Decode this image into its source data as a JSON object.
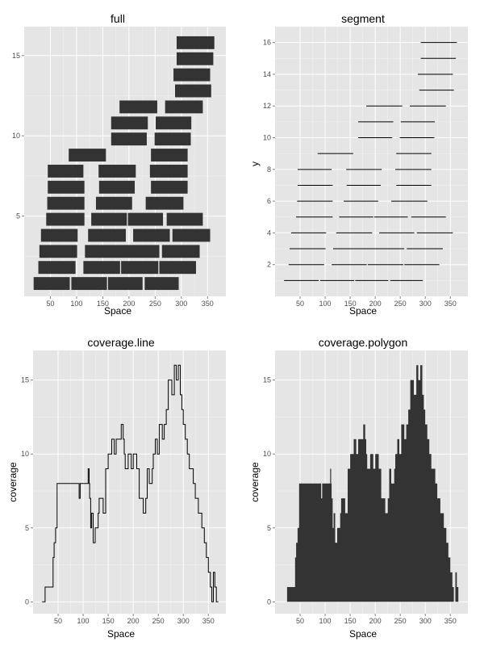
{
  "chart_data": [
    {
      "type": "bar",
      "title": "full",
      "xlabel": "Space",
      "ylabel": "",
      "xlim": [
        0,
        385
      ],
      "ylim": [
        0,
        16.8
      ],
      "xticks": [
        50,
        100,
        150,
        200,
        250,
        300,
        350
      ],
      "yticks": [
        5,
        10,
        15
      ],
      "grid": true,
      "rects": [
        {
          "x1": 18,
          "x2": 87,
          "y1": 0.4,
          "y2": 1.2
        },
        {
          "x1": 90,
          "x2": 158,
          "y1": 0.4,
          "y2": 1.2
        },
        {
          "x1": 160,
          "x2": 226,
          "y1": 0.4,
          "y2": 1.2
        },
        {
          "x1": 230,
          "x2": 295,
          "y1": 0.4,
          "y2": 1.2
        },
        {
          "x1": 27,
          "x2": 98,
          "y1": 1.4,
          "y2": 2.2
        },
        {
          "x1": 113,
          "x2": 183,
          "y1": 1.4,
          "y2": 2.2
        },
        {
          "x1": 185,
          "x2": 256,
          "y1": 1.4,
          "y2": 2.2
        },
        {
          "x1": 258,
          "x2": 328,
          "y1": 1.4,
          "y2": 2.2
        },
        {
          "x1": 29,
          "x2": 101,
          "y1": 2.4,
          "y2": 3.2
        },
        {
          "x1": 116,
          "x2": 258,
          "y1": 2.4,
          "y2": 3.2
        },
        {
          "x1": 263,
          "x2": 335,
          "y1": 2.4,
          "y2": 3.2
        },
        {
          "x1": 32,
          "x2": 102,
          "y1": 3.4,
          "y2": 4.2
        },
        {
          "x1": 122,
          "x2": 194,
          "y1": 3.4,
          "y2": 4.2
        },
        {
          "x1": 208,
          "x2": 278,
          "y1": 3.4,
          "y2": 4.2
        },
        {
          "x1": 283,
          "x2": 355,
          "y1": 3.4,
          "y2": 4.2
        },
        {
          "x1": 42,
          "x2": 115,
          "y1": 4.4,
          "y2": 5.2
        },
        {
          "x1": 128,
          "x2": 196,
          "y1": 4.4,
          "y2": 5.2
        },
        {
          "x1": 198,
          "x2": 265,
          "y1": 4.4,
          "y2": 5.2
        },
        {
          "x1": 272,
          "x2": 341,
          "y1": 4.4,
          "y2": 5.2
        },
        {
          "x1": 44,
          "x2": 115,
          "y1": 5.4,
          "y2": 6.2
        },
        {
          "x1": 137,
          "x2": 206,
          "y1": 5.4,
          "y2": 6.2
        },
        {
          "x1": 232,
          "x2": 304,
          "y1": 5.4,
          "y2": 6.2
        },
        {
          "x1": 45,
          "x2": 115,
          "y1": 6.4,
          "y2": 7.2
        },
        {
          "x1": 143,
          "x2": 211,
          "y1": 6.4,
          "y2": 7.2
        },
        {
          "x1": 242,
          "x2": 312,
          "y1": 6.4,
          "y2": 7.2
        },
        {
          "x1": 45,
          "x2": 113,
          "y1": 7.4,
          "y2": 8.2
        },
        {
          "x1": 142,
          "x2": 213,
          "y1": 7.4,
          "y2": 8.2
        },
        {
          "x1": 240,
          "x2": 312,
          "y1": 7.4,
          "y2": 8.2
        },
        {
          "x1": 85,
          "x2": 156,
          "y1": 8.4,
          "y2": 9.2
        },
        {
          "x1": 242,
          "x2": 312,
          "y1": 8.4,
          "y2": 9.2
        },
        {
          "x1": 166,
          "x2": 234,
          "y1": 9.4,
          "y2": 10.2
        },
        {
          "x1": 249,
          "x2": 318,
          "y1": 9.4,
          "y2": 10.2
        },
        {
          "x1": 166,
          "x2": 236,
          "y1": 10.4,
          "y2": 11.2
        },
        {
          "x1": 251,
          "x2": 319,
          "y1": 10.4,
          "y2": 11.2
        },
        {
          "x1": 182,
          "x2": 254,
          "y1": 11.4,
          "y2": 12.2
        },
        {
          "x1": 269,
          "x2": 341,
          "y1": 11.4,
          "y2": 12.2
        },
        {
          "x1": 288,
          "x2": 357,
          "y1": 12.4,
          "y2": 13.2
        },
        {
          "x1": 285,
          "x2": 355,
          "y1": 13.4,
          "y2": 14.2
        },
        {
          "x1": 291,
          "x2": 361,
          "y1": 14.4,
          "y2": 15.2
        },
        {
          "x1": 291,
          "x2": 363,
          "y1": 15.4,
          "y2": 16.2
        }
      ]
    },
    {
      "type": "segment",
      "title": "segment",
      "xlabel": "Space",
      "ylabel": "y",
      "xlim": [
        0,
        385
      ],
      "ylim": [
        0,
        17
      ],
      "xticks": [
        50,
        100,
        150,
        200,
        250,
        300,
        350
      ],
      "yticks": [
        2,
        4,
        6,
        8,
        10,
        12,
        14,
        16
      ],
      "grid": true,
      "segments": [
        {
          "y": 1,
          "x1": 18,
          "x2": 87
        },
        {
          "y": 1,
          "x1": 90,
          "x2": 158
        },
        {
          "y": 1,
          "x1": 160,
          "x2": 226
        },
        {
          "y": 1,
          "x1": 230,
          "x2": 295
        },
        {
          "y": 2,
          "x1": 27,
          "x2": 98
        },
        {
          "y": 2,
          "x1": 113,
          "x2": 183
        },
        {
          "y": 2,
          "x1": 185,
          "x2": 256
        },
        {
          "y": 2,
          "x1": 258,
          "x2": 328
        },
        {
          "y": 3,
          "x1": 29,
          "x2": 101
        },
        {
          "y": 3,
          "x1": 116,
          "x2": 258
        },
        {
          "y": 3,
          "x1": 263,
          "x2": 335
        },
        {
          "y": 4,
          "x1": 32,
          "x2": 102
        },
        {
          "y": 4,
          "x1": 122,
          "x2": 194
        },
        {
          "y": 4,
          "x1": 208,
          "x2": 278
        },
        {
          "y": 4,
          "x1": 283,
          "x2": 355
        },
        {
          "y": 5,
          "x1": 42,
          "x2": 115
        },
        {
          "y": 5,
          "x1": 128,
          "x2": 196
        },
        {
          "y": 5,
          "x1": 198,
          "x2": 265
        },
        {
          "y": 5,
          "x1": 272,
          "x2": 341
        },
        {
          "y": 6,
          "x1": 44,
          "x2": 115
        },
        {
          "y": 6,
          "x1": 137,
          "x2": 206
        },
        {
          "y": 6,
          "x1": 232,
          "x2": 304
        },
        {
          "y": 7,
          "x1": 45,
          "x2": 115
        },
        {
          "y": 7,
          "x1": 143,
          "x2": 211
        },
        {
          "y": 7,
          "x1": 242,
          "x2": 312
        },
        {
          "y": 8,
          "x1": 45,
          "x2": 113
        },
        {
          "y": 8,
          "x1": 142,
          "x2": 213
        },
        {
          "y": 8,
          "x1": 240,
          "x2": 312
        },
        {
          "y": 9,
          "x1": 85,
          "x2": 156
        },
        {
          "y": 9,
          "x1": 242,
          "x2": 312
        },
        {
          "y": 10,
          "x1": 166,
          "x2": 234
        },
        {
          "y": 10,
          "x1": 249,
          "x2": 318
        },
        {
          "y": 11,
          "x1": 166,
          "x2": 236
        },
        {
          "y": 11,
          "x1": 251,
          "x2": 319
        },
        {
          "y": 12,
          "x1": 182,
          "x2": 254
        },
        {
          "y": 12,
          "x1": 269,
          "x2": 341
        },
        {
          "y": 13,
          "x1": 288,
          "x2": 357
        },
        {
          "y": 14,
          "x1": 285,
          "x2": 355
        },
        {
          "y": 15,
          "x1": 291,
          "x2": 361
        },
        {
          "y": 16,
          "x1": 291,
          "x2": 363
        }
      ]
    },
    {
      "type": "line",
      "title": "coverage.line",
      "xlabel": "Space",
      "ylabel": "coverage",
      "xlim": [
        0,
        385
      ],
      "ylim": [
        -0.8,
        17
      ],
      "xticks": [
        50,
        100,
        150,
        200,
        250,
        300,
        350
      ],
      "yticks": [
        0,
        5,
        10,
        15
      ],
      "grid": true,
      "series": [
        {
          "x": [
            18,
            24,
            24,
            27,
            27,
            30,
            30,
            40,
            40,
            42,
            42,
            44,
            44,
            45,
            45,
            48,
            48,
            92,
            92,
            94,
            94,
            110,
            110,
            112,
            112,
            113,
            113,
            115,
            115,
            117,
            117,
            120,
            120,
            124,
            124,
            130,
            130,
            132,
            132,
            140,
            140,
            145,
            145,
            150,
            150,
            157,
            157,
            162,
            162,
            166,
            166,
            176,
            176,
            180,
            180,
            182,
            182,
            184,
            184,
            190,
            190,
            196,
            196,
            200,
            200,
            207,
            207,
            212,
            212,
            220,
            220,
            225,
            225,
            228,
            228,
            232,
            232,
            238,
            238,
            240,
            240,
            244,
            244,
            248,
            248,
            252,
            252,
            258,
            258,
            262,
            262,
            266,
            266,
            270,
            270,
            277,
            277,
            282,
            282,
            286,
            286,
            290,
            290,
            294,
            294,
            297,
            297,
            300,
            300,
            304,
            304,
            308,
            308,
            312,
            312,
            320,
            320,
            324,
            324,
            330,
            330,
            337,
            337,
            342,
            342,
            346,
            346,
            350,
            350,
            354,
            354,
            357,
            357,
            360,
            360,
            363,
            363,
            366,
            366,
            370
          ],
          "y": [
            0,
            0,
            1,
            1,
            1,
            1,
            1,
            1,
            3,
            3,
            4,
            4,
            4,
            4,
            5,
            5,
            8,
            8,
            7,
            7,
            8,
            8,
            9,
            9,
            8,
            8,
            7,
            7,
            5,
            5,
            6,
            6,
            4,
            4,
            5,
            5,
            6,
            6,
            7,
            7,
            6,
            6,
            9,
            9,
            10,
            10,
            11,
            11,
            10,
            10,
            11,
            11,
            12,
            12,
            11,
            11,
            10,
            10,
            9,
            9,
            10,
            10,
            9,
            9,
            10,
            10,
            9,
            9,
            7,
            7,
            6,
            6,
            7,
            7,
            9,
            9,
            8,
            8,
            9,
            9,
            10,
            10,
            11,
            11,
            10,
            10,
            12,
            12,
            11,
            11,
            12,
            12,
            13,
            13,
            15,
            15,
            14,
            14,
            16,
            16,
            15,
            15,
            16,
            16,
            14,
            14,
            13,
            13,
            12,
            12,
            11,
            11,
            10,
            10,
            9,
            9,
            8,
            8,
            7,
            7,
            6,
            6,
            5,
            5,
            4,
            4,
            3,
            3,
            2,
            2,
            1,
            1,
            0,
            0,
            2,
            2,
            1,
            1,
            0,
            0
          ]
        }
      ]
    },
    {
      "type": "area",
      "title": "coverage.polygon",
      "xlabel": "Space",
      "ylabel": "coverage",
      "xlim": [
        0,
        385
      ],
      "ylim": [
        -0.8,
        17
      ],
      "xticks": [
        50,
        100,
        150,
        200,
        250,
        300,
        350
      ],
      "yticks": [
        0,
        5,
        10,
        15
      ],
      "grid": true,
      "series": [
        {
          "x": [
            18,
            24,
            24,
            27,
            27,
            30,
            30,
            40,
            40,
            42,
            42,
            44,
            44,
            45,
            45,
            48,
            48,
            92,
            92,
            94,
            94,
            110,
            110,
            112,
            112,
            113,
            113,
            115,
            115,
            117,
            117,
            120,
            120,
            124,
            124,
            130,
            130,
            132,
            132,
            140,
            140,
            145,
            145,
            150,
            150,
            157,
            157,
            162,
            162,
            166,
            166,
            176,
            176,
            180,
            180,
            182,
            182,
            184,
            184,
            190,
            190,
            196,
            196,
            200,
            200,
            207,
            207,
            212,
            212,
            220,
            220,
            225,
            225,
            228,
            228,
            232,
            232,
            238,
            238,
            240,
            240,
            244,
            244,
            248,
            248,
            252,
            252,
            258,
            258,
            262,
            262,
            266,
            266,
            270,
            270,
            277,
            277,
            282,
            282,
            286,
            286,
            290,
            290,
            294,
            294,
            297,
            297,
            300,
            300,
            304,
            304,
            308,
            308,
            312,
            312,
            320,
            320,
            324,
            324,
            330,
            330,
            337,
            337,
            342,
            342,
            346,
            346,
            350,
            350,
            354,
            354,
            357,
            357,
            360,
            360,
            363,
            363,
            366,
            366,
            370
          ],
          "y": [
            0,
            0,
            1,
            1,
            1,
            1,
            1,
            1,
            3,
            3,
            4,
            4,
            4,
            4,
            5,
            5,
            8,
            8,
            7,
            7,
            8,
            8,
            9,
            9,
            8,
            8,
            7,
            7,
            5,
            5,
            6,
            6,
            4,
            4,
            5,
            5,
            6,
            6,
            7,
            7,
            6,
            6,
            9,
            9,
            10,
            10,
            11,
            11,
            10,
            10,
            11,
            11,
            12,
            12,
            11,
            11,
            10,
            10,
            9,
            9,
            10,
            10,
            9,
            9,
            10,
            10,
            9,
            9,
            7,
            7,
            6,
            6,
            7,
            7,
            9,
            9,
            8,
            8,
            9,
            9,
            10,
            10,
            11,
            11,
            10,
            10,
            12,
            12,
            11,
            11,
            12,
            12,
            13,
            13,
            15,
            15,
            14,
            14,
            16,
            16,
            15,
            15,
            16,
            16,
            14,
            14,
            13,
            13,
            12,
            12,
            11,
            11,
            10,
            10,
            9,
            9,
            8,
            8,
            7,
            7,
            6,
            6,
            5,
            5,
            4,
            4,
            3,
            3,
            2,
            2,
            1,
            1,
            0,
            0,
            2,
            2,
            1,
            1,
            0,
            0
          ]
        }
      ]
    }
  ]
}
